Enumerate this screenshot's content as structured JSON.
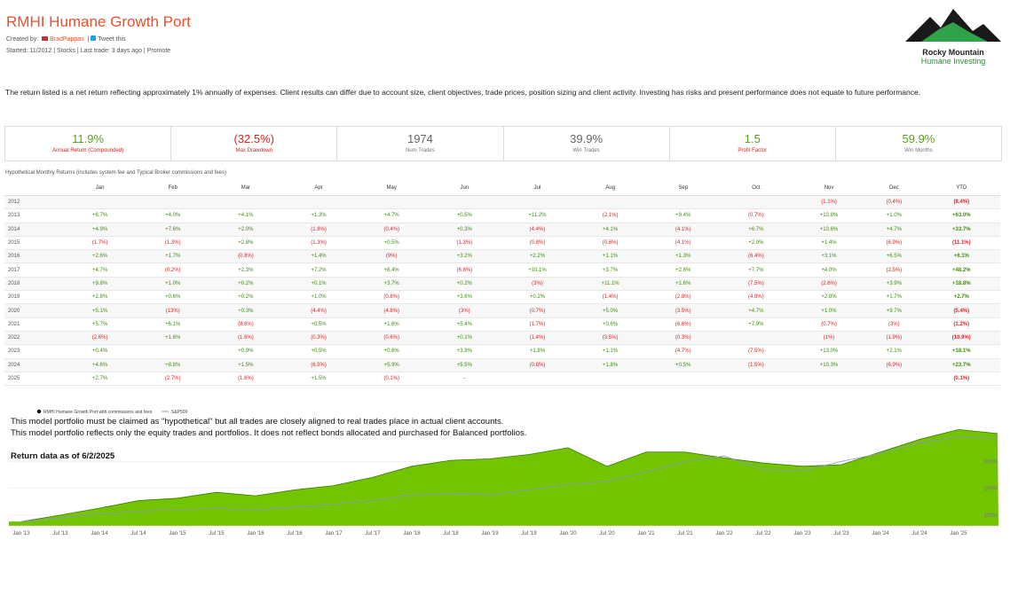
{
  "header": {
    "title": "RMHI Humane Growth Port",
    "created_by": "Created by:",
    "author": "BradPappas",
    "tweet": "Tweet this",
    "started": "Started: 11/2012",
    "asset": "Stocks",
    "last_trade": "Last trade: 3 days ago",
    "promote": "Promote"
  },
  "logo": {
    "line1": "Rocky Mountain",
    "line2": "Humane Investing"
  },
  "disclaimer": "The return listed is a net return reflecting approximately 1% annually of expenses. Client results can differ due to account size, client objectives, trade prices, position sizing and client activity. Investing has risks and present performance does not equate to future performance.",
  "stats": [
    {
      "value": "11.9%",
      "label": "Annual Return (Compounded)"
    },
    {
      "value": "(32.5%)",
      "label": "Max Drawdown"
    },
    {
      "value": "1974",
      "label": "Num Trades"
    },
    {
      "value": "39.9%",
      "label": "Win Trades"
    },
    {
      "value": "1.5",
      "label": "Profit Factor"
    },
    {
      "value": "59.9%",
      "label": "Win Months"
    }
  ],
  "table": {
    "caption": "Hypothetical Monthly Returns (includes system fee and Typical Broker commissions and fees)",
    "columns": [
      "Jan",
      "Feb",
      "Mar",
      "Apr",
      "May",
      "Jun",
      "Jul",
      "Aug",
      "Sep",
      "Oct",
      "Nov",
      "Dec",
      "YTD"
    ],
    "rows": [
      [
        "2012",
        null,
        null,
        null,
        null,
        null,
        null,
        null,
        null,
        null,
        null,
        "(1.1%)",
        "(0.4%)",
        "(8.4%)"
      ],
      [
        "2013",
        "+6.7%",
        "+4.0%",
        "+4.1%",
        "+1.3%",
        "+4.7%",
        "+0.5%",
        "+11.2%",
        "(2.1%)",
        "+9.4%",
        "(0.7%)",
        "+10.8%",
        "+1.0%",
        "+63.0%"
      ],
      [
        "2014",
        "+4.9%",
        "+7.6%",
        "+2.0%",
        "(1.8%)",
        "(0.4%)",
        "+0.3%",
        "(4.4%)",
        "+4.1%",
        "(4.1%)",
        "+6.7%",
        "+10.6%",
        "+4.7%",
        "+33.7%"
      ],
      [
        "2015",
        "(1.7%)",
        "(1.3%)",
        "+2.8%",
        "(1.3%)",
        "+0.5%",
        "(1.3%)",
        "(0.8%)",
        "(0.6%)",
        "(4.1%)",
        "+2.0%",
        "+1.4%",
        "(6.9%)",
        "(11.1%)"
      ],
      [
        "2016",
        "+2.6%",
        "+1.7%",
        "(0.8%)",
        "+1.4%",
        "(9%)",
        "+3.2%",
        "+2.2%",
        "+1.1%",
        "+1.3%",
        "(6.4%)",
        "+3.1%",
        "+6.5%",
        "+6.1%"
      ],
      [
        "2017",
        "+4.7%",
        "(0.2%)",
        "+2.3%",
        "+7.2%",
        "+8.4%",
        "(6.8%)",
        "+10.1%",
        "+3.7%",
        "+2.6%",
        "+7.7%",
        "+4.0%",
        "(2.5%)",
        "+48.2%"
      ],
      [
        "2018",
        "+9.8%",
        "+1.0%",
        "+0.2%",
        "+0.1%",
        "+3.7%",
        "+0.2%",
        "(3%)",
        "+11.1%",
        "+1.6%",
        "(7.5%)",
        "(2.6%)",
        "+3.9%",
        "+18.8%"
      ],
      [
        "2019",
        "+2.8%",
        "+0.6%",
        "+0.2%",
        "+1.0%",
        "(0.8%)",
        "+3.6%",
        "+0.2%",
        "(1.4%)",
        "(2.8%)",
        "(4.9%)",
        "+2.8%",
        "+1.7%",
        "+2.7%"
      ],
      [
        "2020",
        "+5.1%",
        "(13%)",
        "+0.3%",
        "(4.4%)",
        "(4.8%)",
        "(3%)",
        "(0.7%)",
        "+5.0%",
        "(3.5%)",
        "+4.7%",
        "+1.0%",
        "+9.7%",
        "(5.4%)"
      ],
      [
        "2021",
        "+5.7%",
        "+6.1%",
        "(8.6%)",
        "+0.5%",
        "+1.6%",
        "+5.4%",
        "(1.7%)",
        "+0.6%",
        "(6.6%)",
        "+7.9%",
        "(0.7%)",
        "(3%)",
        "(1.2%)"
      ],
      [
        "2022",
        "(2.6%)",
        "+1.6%",
        "(1.6%)",
        "(0.3%)",
        "(0.6%)",
        "+0.1%",
        "(1.4%)",
        "(3.5%)",
        "(0.3%)",
        null,
        "(1%)",
        "(1.9%)",
        "(10.9%)"
      ],
      [
        "2023",
        "+0.4%",
        null,
        "+0.9%",
        "+0.5%",
        "+0.6%",
        "+3.9%",
        "+1.8%",
        "+1.1%",
        "(4.7%)",
        "(7.5%)",
        "+13.0%",
        "+2.1%",
        "+18.1%"
      ],
      [
        "2024",
        "+4.6%",
        "+8.8%",
        "+1.5%",
        "(6.5%)",
        "+5.9%",
        "+5.5%",
        "(0.8%)",
        "+1.8%",
        "+0.5%",
        "(1.5%)",
        "+10.3%",
        "(6.9%)",
        "+23.7%"
      ],
      [
        "2025",
        "+2.7%",
        "(2.7%)",
        "(1.6%)",
        "+1.5%",
        "(0.1%)",
        "-",
        null,
        null,
        null,
        null,
        null,
        null,
        "(0.1%)"
      ]
    ]
  },
  "notes": [
    "This model portfolio must be claimed as \"hypothetical\" but all trades are closely aligned to real trades place in actual client accounts.",
    "This model portfolio reflects only the equity trades and portfolios.  It does not reflect bonds allocated and purchased for Balanced portfolios.",
    "Return data as of 6/2/2025"
  ],
  "chart_data": {
    "type": "area",
    "categories": [
      "Jan '13",
      "Jul '13",
      "Jan '14",
      "Jul '14",
      "Jan '15",
      "Jul '15",
      "Jan '16",
      "Jul '16",
      "Jan '17",
      "Jul '17",
      "Jan '18",
      "Jul '18",
      "Jan '19",
      "Jul '19",
      "Jan '20",
      "Jul '20",
      "Jan '21",
      "Jul '21",
      "Jan '22",
      "Jul '22",
      "Jan '23",
      "Jul '23",
      "Jan '24",
      "Jul '24",
      "Jan '25",
      null
    ],
    "series": [
      {
        "name": "RMHI Humane Growth Port with commissions and fees",
        "color": "#72c400",
        "values": [
          76,
          100,
          126,
          154,
          163,
          185,
          172,
          194,
          210,
          241,
          282,
          304,
          310,
          326,
          351,
          282,
          335,
          335,
          313,
          294,
          282,
          288,
          335,
          382,
          419,
          404
        ]
      },
      {
        "name": "S&P500",
        "color": "#8a9bb8",
        "values": [
          76,
          90,
          105,
          115,
          120,
          125,
          118,
          130,
          140,
          155,
          175,
          180,
          175,
          195,
          215,
          225,
          260,
          300,
          320,
          270,
          265,
          300,
          330,
          370,
          390,
          385
        ]
      }
    ],
    "ylim": [
      60,
      440
    ],
    "yticks": [
      {
        "value": 100,
        "label": "100%"
      },
      {
        "value": 200,
        "label": "200%"
      },
      {
        "value": 300,
        "label": "300%"
      }
    ],
    "grid": true
  }
}
